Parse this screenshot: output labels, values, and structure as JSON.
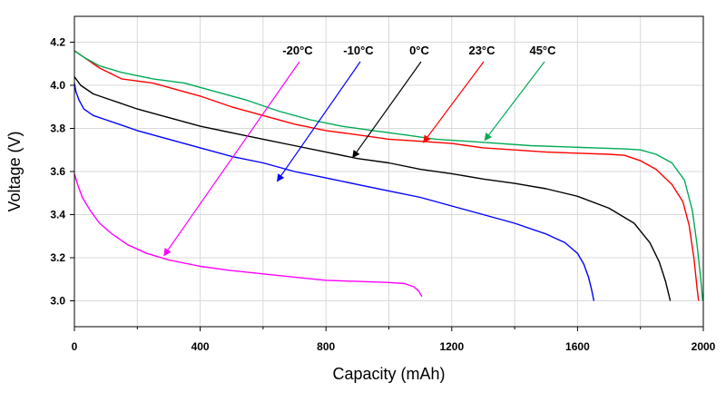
{
  "chart_data": {
    "type": "line",
    "xlabel": "Capacity (mAh)",
    "ylabel": "Voltage (V)",
    "xlim": [
      0,
      2000
    ],
    "ylim": [
      2.88,
      4.32
    ],
    "xticks": [
      0,
      400,
      800,
      1200,
      1600,
      2000
    ],
    "x_minor_ticks": [
      200,
      600,
      1000,
      1400,
      1800
    ],
    "yticks": [
      3.0,
      3.2,
      3.4,
      3.6,
      3.8,
      4.0,
      4.2
    ],
    "ytick_labels": [
      "3.0",
      "3.2",
      "3.4",
      "3.6",
      "3.8",
      "4.0",
      "4.2"
    ],
    "grid": true,
    "series": [
      {
        "name": "-20°C",
        "color": "#ff00ff",
        "points": [
          [
            0,
            3.59
          ],
          [
            10,
            3.54
          ],
          [
            25,
            3.48
          ],
          [
            50,
            3.42
          ],
          [
            80,
            3.36
          ],
          [
            120,
            3.31
          ],
          [
            170,
            3.26
          ],
          [
            230,
            3.22
          ],
          [
            300,
            3.19
          ],
          [
            400,
            3.16
          ],
          [
            500,
            3.14
          ],
          [
            600,
            3.125
          ],
          [
            700,
            3.11
          ],
          [
            800,
            3.095
          ],
          [
            900,
            3.09
          ],
          [
            1000,
            3.085
          ],
          [
            1050,
            3.08
          ],
          [
            1080,
            3.065
          ],
          [
            1095,
            3.045
          ],
          [
            1105,
            3.02
          ]
        ]
      },
      {
        "name": "-10°C",
        "color": "#0000ff",
        "points": [
          [
            0,
            4.01
          ],
          [
            5,
            3.97
          ],
          [
            15,
            3.93
          ],
          [
            30,
            3.89
          ],
          [
            60,
            3.86
          ],
          [
            100,
            3.84
          ],
          [
            200,
            3.79
          ],
          [
            300,
            3.75
          ],
          [
            400,
            3.71
          ],
          [
            500,
            3.67
          ],
          [
            600,
            3.64
          ],
          [
            700,
            3.6
          ],
          [
            800,
            3.57
          ],
          [
            900,
            3.54
          ],
          [
            1000,
            3.51
          ],
          [
            1100,
            3.48
          ],
          [
            1200,
            3.44
          ],
          [
            1300,
            3.4
          ],
          [
            1400,
            3.36
          ],
          [
            1500,
            3.31
          ],
          [
            1560,
            3.27
          ],
          [
            1600,
            3.22
          ],
          [
            1620,
            3.17
          ],
          [
            1635,
            3.11
          ],
          [
            1645,
            3.05
          ],
          [
            1652,
            3.0
          ]
        ]
      },
      {
        "name": "0°C",
        "color": "#000000",
        "points": [
          [
            0,
            4.04
          ],
          [
            20,
            4.0
          ],
          [
            60,
            3.96
          ],
          [
            120,
            3.93
          ],
          [
            200,
            3.89
          ],
          [
            300,
            3.85
          ],
          [
            400,
            3.81
          ],
          [
            500,
            3.78
          ],
          [
            600,
            3.75
          ],
          [
            700,
            3.72
          ],
          [
            800,
            3.69
          ],
          [
            900,
            3.66
          ],
          [
            1000,
            3.64
          ],
          [
            1100,
            3.61
          ],
          [
            1200,
            3.59
          ],
          [
            1300,
            3.565
          ],
          [
            1400,
            3.545
          ],
          [
            1500,
            3.52
          ],
          [
            1600,
            3.485
          ],
          [
            1700,
            3.43
          ],
          [
            1780,
            3.36
          ],
          [
            1830,
            3.27
          ],
          [
            1860,
            3.18
          ],
          [
            1880,
            3.09
          ],
          [
            1890,
            3.03
          ],
          [
            1895,
            3.0
          ]
        ]
      },
      {
        "name": "23°C",
        "color": "#ff0000",
        "points": [
          [
            0,
            4.16
          ],
          [
            30,
            4.13
          ],
          [
            80,
            4.08
          ],
          [
            150,
            4.03
          ],
          [
            250,
            4.01
          ],
          [
            400,
            3.95
          ],
          [
            500,
            3.9
          ],
          [
            600,
            3.86
          ],
          [
            700,
            3.82
          ],
          [
            800,
            3.79
          ],
          [
            900,
            3.77
          ],
          [
            1000,
            3.75
          ],
          [
            1100,
            3.74
          ],
          [
            1200,
            3.73
          ],
          [
            1300,
            3.71
          ],
          [
            1400,
            3.7
          ],
          [
            1500,
            3.69
          ],
          [
            1600,
            3.685
          ],
          [
            1700,
            3.68
          ],
          [
            1750,
            3.675
          ],
          [
            1800,
            3.65
          ],
          [
            1850,
            3.61
          ],
          [
            1900,
            3.54
          ],
          [
            1935,
            3.46
          ],
          [
            1955,
            3.35
          ],
          [
            1970,
            3.2
          ],
          [
            1980,
            3.06
          ],
          [
            1985,
            3.0
          ]
        ]
      },
      {
        "name": "45°C",
        "color": "#00aa55",
        "points": [
          [
            0,
            4.16
          ],
          [
            30,
            4.13
          ],
          [
            80,
            4.09
          ],
          [
            150,
            4.06
          ],
          [
            250,
            4.03
          ],
          [
            350,
            4.01
          ],
          [
            450,
            3.97
          ],
          [
            550,
            3.93
          ],
          [
            650,
            3.88
          ],
          [
            750,
            3.84
          ],
          [
            850,
            3.81
          ],
          [
            950,
            3.79
          ],
          [
            1050,
            3.77
          ],
          [
            1150,
            3.75
          ],
          [
            1250,
            3.74
          ],
          [
            1350,
            3.73
          ],
          [
            1450,
            3.72
          ],
          [
            1550,
            3.715
          ],
          [
            1650,
            3.71
          ],
          [
            1750,
            3.705
          ],
          [
            1800,
            3.7
          ],
          [
            1850,
            3.68
          ],
          [
            1900,
            3.64
          ],
          [
            1940,
            3.56
          ],
          [
            1965,
            3.42
          ],
          [
            1980,
            3.26
          ],
          [
            1992,
            3.1
          ],
          [
            1998,
            3.0
          ]
        ]
      }
    ],
    "annotations": [
      {
        "label": "-20°C",
        "series": 0,
        "arrow_to": [
          285,
          3.21
        ]
      },
      {
        "label": "-10°C",
        "series": 1,
        "arrow_to": [
          645,
          3.555
        ]
      },
      {
        "label": "0°C",
        "series": 2,
        "arrow_to": [
          885,
          3.665
        ]
      },
      {
        "label": "23°C",
        "series": 3,
        "arrow_to": [
          1110,
          3.735
        ]
      },
      {
        "label": "45°C",
        "series": 4,
        "arrow_to": [
          1305,
          3.745
        ]
      }
    ]
  }
}
